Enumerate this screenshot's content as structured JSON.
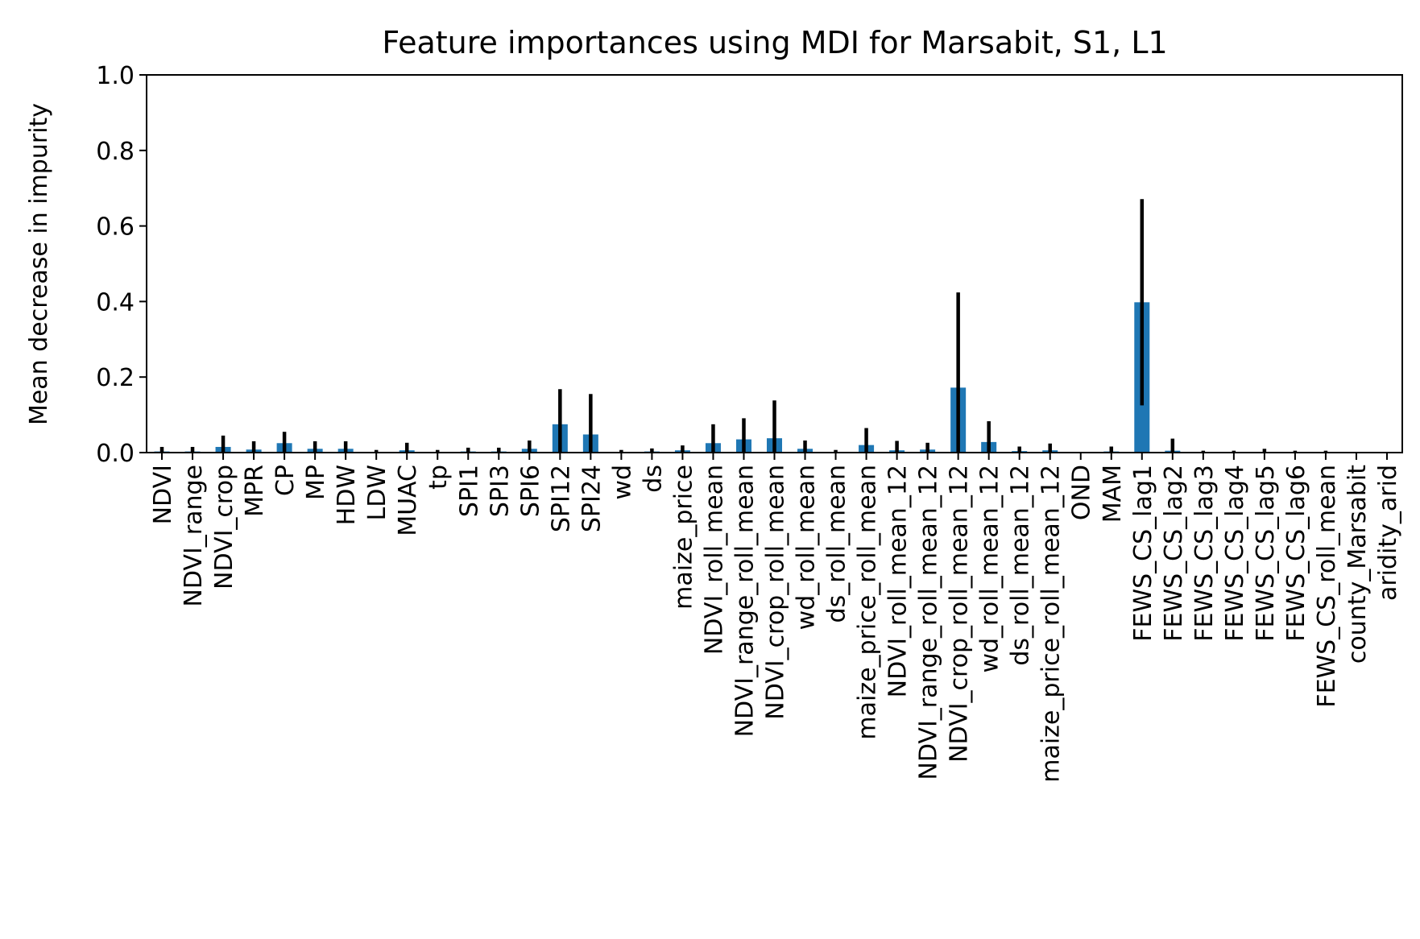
{
  "chart_data": {
    "type": "bar",
    "title": "Feature importances using MDI for Marsabit, S1, L1",
    "xlabel": "",
    "ylabel": "Mean decrease in impurity",
    "ylim": [
      0,
      1.0
    ],
    "yticks": [
      "0.0",
      "0.2",
      "0.4",
      "0.6",
      "0.8",
      "1.0"
    ],
    "grid": false,
    "legend": "none",
    "bar_color": "#1f77b4",
    "error_color": "#000000",
    "categories": [
      "NDVI",
      "NDVI_range",
      "NDVI_crop",
      "MPR",
      "CP",
      "MP",
      "HDW",
      "LDW",
      "MUAC",
      "tp",
      "SPI1",
      "SPI3",
      "SPI6",
      "SPI12",
      "SPI24",
      "wd",
      "ds",
      "maize_price",
      "NDVI_roll_mean",
      "NDVI_range_roll_mean",
      "NDVI_crop_roll_mean",
      "wd_roll_mean",
      "ds_roll_mean",
      "maize_price_roll_mean",
      "NDVI_roll_mean_12",
      "NDVI_range_roll_mean_12",
      "NDVI_crop_roll_mean_12",
      "wd_roll_mean_12",
      "ds_roll_mean_12",
      "maize_price_roll_mean_12",
      "OND",
      "MAM",
      "FEWS_CS_lag1",
      "FEWS_CS_lag2",
      "FEWS_CS_lag3",
      "FEWS_CS_lag4",
      "FEWS_CS_lag5",
      "FEWS_CS_lag6",
      "FEWS_CS_roll_mean",
      "county_Marsabit",
      "aridity_arid"
    ],
    "values": [
      0.003,
      0.003,
      0.015,
      0.008,
      0.025,
      0.01,
      0.01,
      0.002,
      0.006,
      0.002,
      0.003,
      0.003,
      0.01,
      0.075,
      0.048,
      0.002,
      0.003,
      0.006,
      0.025,
      0.035,
      0.038,
      0.01,
      0.002,
      0.02,
      0.006,
      0.008,
      0.172,
      0.028,
      0.004,
      0.006,
      0.0,
      0.003,
      0.398,
      0.005,
      0.001,
      0.001,
      0.002,
      0.001,
      0.001,
      0.0,
      0.0
    ],
    "errors": [
      0.012,
      0.012,
      0.03,
      0.022,
      0.03,
      0.02,
      0.02,
      0.005,
      0.02,
      0.005,
      0.01,
      0.01,
      0.022,
      0.093,
      0.107,
      0.005,
      0.008,
      0.013,
      0.05,
      0.056,
      0.1,
      0.022,
      0.005,
      0.045,
      0.025,
      0.018,
      0.252,
      0.055,
      0.012,
      0.018,
      0.0,
      0.013,
      0.273,
      0.032,
      0.004,
      0.004,
      0.008,
      0.004,
      0.004,
      0.0,
      0.0
    ]
  }
}
